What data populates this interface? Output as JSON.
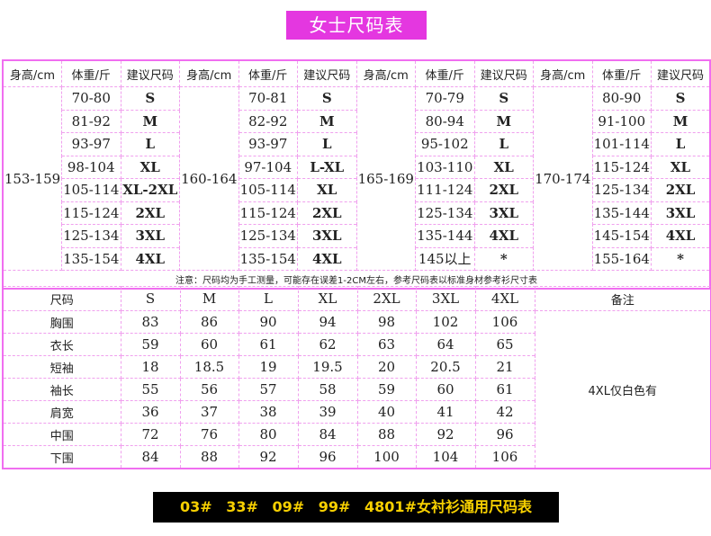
{
  "title": "女士尺码表",
  "headers": [
    "身高/cm",
    "体重/斤",
    "建议尺码"
  ],
  "groups": [
    {
      "height": "153-159",
      "rows": [
        [
          "70-80",
          "S"
        ],
        [
          "81-92",
          "M"
        ],
        [
          "93-97",
          "L"
        ],
        [
          "98-104",
          "XL"
        ],
        [
          "105-114",
          "XL-2XL"
        ],
        [
          "115-124",
          "2XL"
        ],
        [
          "125-134",
          "3XL"
        ],
        [
          "135-154",
          "4XL"
        ]
      ]
    },
    {
      "height": "160-164",
      "rows": [
        [
          "70-81",
          "S"
        ],
        [
          "82-92",
          "M"
        ],
        [
          "93-97",
          "L"
        ],
        [
          "97-104",
          "L-XL"
        ],
        [
          "105-114",
          "XL"
        ],
        [
          "115-124",
          "2XL"
        ],
        [
          "125-134",
          "3XL"
        ],
        [
          "135-154",
          "4XL"
        ]
      ]
    },
    {
      "height": "165-169",
      "rows": [
        [
          "70-79",
          "S"
        ],
        [
          "80-94",
          "M"
        ],
        [
          "95-102",
          "L"
        ],
        [
          "103-110",
          "XL"
        ],
        [
          "111-124",
          "2XL"
        ],
        [
          "125-134",
          "3XL"
        ],
        [
          "135-144",
          "4XL"
        ],
        [
          "145以上",
          "*"
        ]
      ]
    },
    {
      "height": "170-174",
      "rows": [
        [
          "80-90",
          "S"
        ],
        [
          "91-100",
          "M"
        ],
        [
          "101-114",
          "L"
        ],
        [
          "115-124",
          "XL"
        ],
        [
          "125-134",
          "2XL"
        ],
        [
          "135-144",
          "3XL"
        ],
        [
          "145-154",
          "4XL"
        ],
        [
          "155-164",
          "*"
        ]
      ]
    }
  ],
  "note": "注意：尺码均为手工测量，可能存在误差1-2CM左右，参考尺码表以标准身材参考衫尺寸表",
  "measure": {
    "header": [
      "尺码",
      "S",
      "M",
      "L",
      "XL",
      "2XL",
      "3XL",
      "4XL"
    ],
    "remark_header": "备注",
    "remark": "4XL仅白色有",
    "rows": [
      [
        "胸围",
        "83",
        "86",
        "90",
        "94",
        "98",
        "102",
        "106"
      ],
      [
        "衣长",
        "59",
        "60",
        "61",
        "62",
        "63",
        "64",
        "65"
      ],
      [
        "短袖",
        "18",
        "18.5",
        "19",
        "19.5",
        "20",
        "20.5",
        "21"
      ],
      [
        "袖长",
        "55",
        "56",
        "57",
        "58",
        "59",
        "60",
        "61"
      ],
      [
        "肩宽",
        "36",
        "37",
        "38",
        "39",
        "40",
        "41",
        "42"
      ],
      [
        "中围",
        "72",
        "76",
        "80",
        "84",
        "88",
        "92",
        "96"
      ],
      [
        "下围",
        "84",
        "88",
        "92",
        "96",
        "100",
        "104",
        "106"
      ]
    ]
  },
  "banner": "03#  33#  09#  99#  4801#女衬衫通用尺码表",
  "colors": {
    "accent": "#e437e0",
    "banner_bg": "#000000",
    "banner_text": "#f7d000"
  }
}
